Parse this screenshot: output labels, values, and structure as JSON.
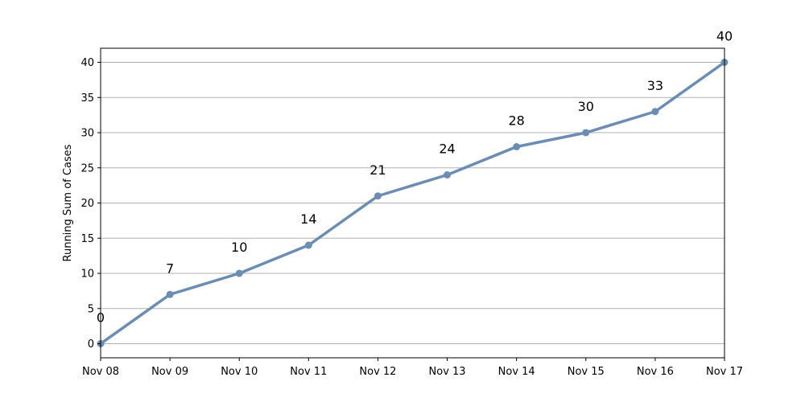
{
  "chart_data": {
    "type": "line",
    "title": "",
    "xlabel": "",
    "ylabel": "Running Sum of Cases",
    "categories": [
      "Nov 08",
      "Nov 09",
      "Nov 10",
      "Nov 11",
      "Nov 12",
      "Nov 13",
      "Nov 14",
      "Nov 15",
      "Nov 16",
      "Nov 17"
    ],
    "series": [
      {
        "values": [
          0,
          7,
          10,
          14,
          21,
          24,
          28,
          30,
          33,
          40
        ]
      }
    ],
    "data_labels": [
      "0",
      "7",
      "10",
      "14",
      "21",
      "24",
      "28",
      "30",
      "33",
      "40"
    ],
    "yticks": [
      0,
      5,
      10,
      15,
      20,
      25,
      30,
      35,
      40
    ],
    "ylim": [
      -2,
      42
    ],
    "grid": "horizontal",
    "line_color": "#6b8db3"
  }
}
